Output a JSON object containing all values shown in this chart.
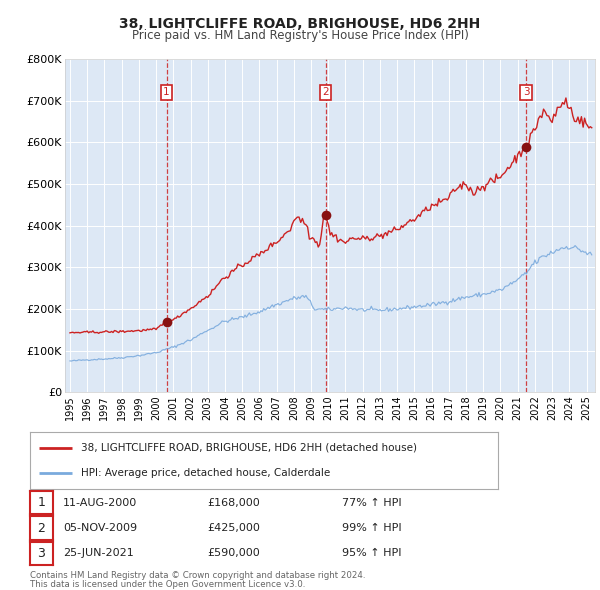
{
  "title_line1": "38, LIGHTCLIFFE ROAD, BRIGHOUSE, HD6 2HH",
  "title_line2": "Price paid vs. HM Land Registry's House Price Index (HPI)",
  "background_color": "#ffffff",
  "plot_bg_color": "#dde8f5",
  "grid_color": "#ffffff",
  "hpi_color": "#7aaadd",
  "price_color": "#cc2222",
  "vline_color": "#cc2222",
  "sale_marker_color": "#881111",
  "ylim": [
    0,
    800000
  ],
  "yticks": [
    0,
    100000,
    200000,
    300000,
    400000,
    500000,
    600000,
    700000,
    800000
  ],
  "ytick_labels": [
    "£0",
    "£100K",
    "£200K",
    "£300K",
    "£400K",
    "£500K",
    "£600K",
    "£700K",
    "£800K"
  ],
  "xlim_start": 1994.7,
  "xlim_end": 2025.5,
  "xticks": [
    1995,
    1996,
    1997,
    1998,
    1999,
    2000,
    2001,
    2002,
    2003,
    2004,
    2005,
    2006,
    2007,
    2008,
    2009,
    2010,
    2011,
    2012,
    2013,
    2014,
    2015,
    2016,
    2017,
    2018,
    2019,
    2020,
    2021,
    2022,
    2023,
    2024,
    2025
  ],
  "legend_label_price": "38, LIGHTCLIFFE ROAD, BRIGHOUSE, HD6 2HH (detached house)",
  "legend_label_hpi": "HPI: Average price, detached house, Calderdale",
  "sale1_date": 2000.61,
  "sale1_price": 168000,
  "sale1_label": "1",
  "sale1_text": "11-AUG-2000",
  "sale1_amount": "£168,000",
  "sale1_pct": "77% ↑ HPI",
  "sale2_date": 2009.84,
  "sale2_price": 425000,
  "sale2_label": "2",
  "sale2_text": "05-NOV-2009",
  "sale2_amount": "£425,000",
  "sale2_pct": "99% ↑ HPI",
  "sale3_date": 2021.48,
  "sale3_price": 590000,
  "sale3_label": "3",
  "sale3_text": "25-JUN-2021",
  "sale3_amount": "£590,000",
  "sale3_pct": "95% ↑ HPI",
  "footnote1": "Contains HM Land Registry data © Crown copyright and database right 2024.",
  "footnote2": "This data is licensed under the Open Government Licence v3.0."
}
